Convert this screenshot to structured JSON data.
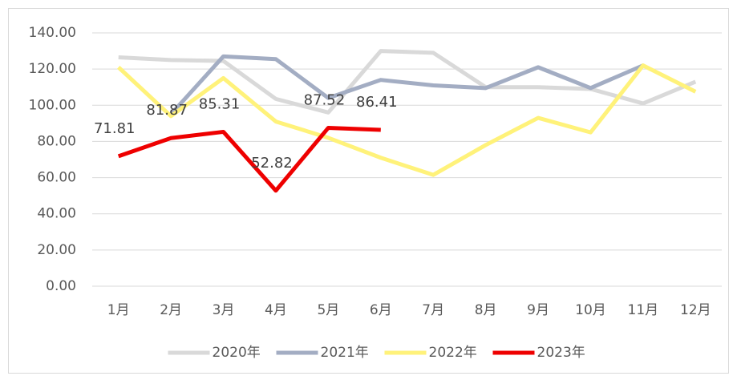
{
  "chart_data": {
    "type": "line",
    "categories": [
      "1月",
      "2月",
      "3月",
      "4月",
      "5月",
      "6月",
      "7月",
      "8月",
      "9月",
      "10月",
      "11月",
      "12月"
    ],
    "series": [
      {
        "name": "2020年",
        "color": "#d9d9d9",
        "values": [
          126.5,
          125,
          124.5,
          103.5,
          96,
          130,
          129,
          110,
          110,
          109,
          101,
          113
        ]
      },
      {
        "name": "2021年",
        "color": "#a3adc3",
        "values": [
          null,
          95,
          127,
          125.5,
          104,
          114,
          111,
          109.5,
          121,
          109.5,
          122,
          null
        ]
      },
      {
        "name": "2022年",
        "color": "#fff27a",
        "values": [
          121,
          94,
          115,
          91,
          82,
          71,
          61.5,
          78,
          93,
          85,
          122,
          107.5
        ]
      },
      {
        "name": "2023年",
        "color": "#ee0000",
        "values": [
          71.81,
          81.87,
          85.31,
          52.82,
          87.52,
          86.41,
          null,
          null,
          null,
          null,
          null,
          null
        ],
        "data_labels": true
      }
    ],
    "ylim": [
      0,
      140
    ],
    "yticks": [
      {
        "value": 0,
        "label": "0.00"
      },
      {
        "value": 20,
        "label": "20.00"
      },
      {
        "value": 40,
        "label": "40.00"
      },
      {
        "value": 60,
        "label": "60.00"
      },
      {
        "value": 80,
        "label": "80.00"
      },
      {
        "value": 100,
        "label": "100.00"
      },
      {
        "value": 120,
        "label": "120.00"
      },
      {
        "value": 140,
        "label": "140.00"
      }
    ],
    "grid": true,
    "legend": "bottom"
  }
}
